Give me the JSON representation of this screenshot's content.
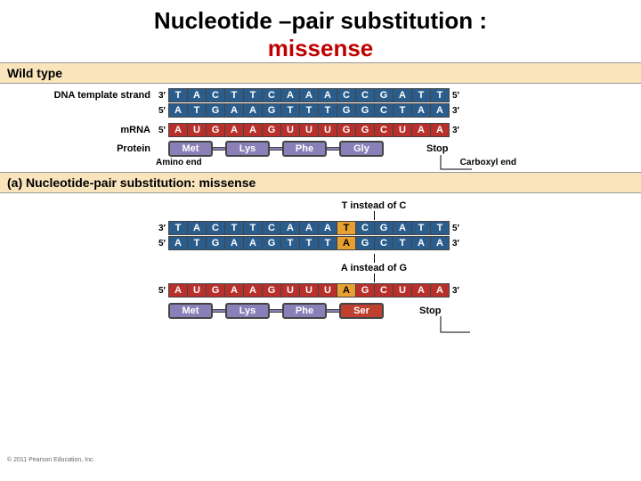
{
  "title": {
    "main": "Nucleotide –pair substitution :",
    "sub": "missense"
  },
  "colors": {
    "dna_blue": "#2b5d8c",
    "mrna_red": "#b8302c",
    "protein_purple": "#8b7fb8",
    "header_bg": "#f9e4bc",
    "mutation_orange": "#e8a030",
    "ser_red": "#c04030"
  },
  "headers": {
    "wild": "Wild type",
    "missense": "(a)  Nucleotide-pair substitution: missense"
  },
  "labels": {
    "dna_template": "DNA template strand",
    "mrna": "mRNA",
    "protein": "Protein",
    "amino_end": "Amino end",
    "carboxyl_end": "Carboxyl end",
    "stop": "Stop",
    "note_t": "T instead of C",
    "note_a": "A instead of G"
  },
  "wild": {
    "dna_top": [
      "T",
      "A",
      "C",
      "T",
      "T",
      "C",
      "A",
      "A",
      "A",
      "C",
      "C",
      "G",
      "A",
      "T",
      "T"
    ],
    "dna_bot": [
      "A",
      "T",
      "G",
      "A",
      "A",
      "G",
      "T",
      "T",
      "T",
      "G",
      "G",
      "C",
      "T",
      "A",
      "A"
    ],
    "mrna": [
      "A",
      "U",
      "G",
      "A",
      "A",
      "G",
      "U",
      "U",
      "U",
      "G",
      "G",
      "C",
      "U",
      "A",
      "A"
    ],
    "protein": [
      "Met",
      "Lys",
      "Phe",
      "Gly"
    ]
  },
  "missense": {
    "dna_top": [
      "T",
      "A",
      "C",
      "T",
      "T",
      "C",
      "A",
      "A",
      "A",
      "T",
      "C",
      "G",
      "A",
      "T",
      "T"
    ],
    "dna_bot": [
      "A",
      "T",
      "G",
      "A",
      "A",
      "G",
      "T",
      "T",
      "T",
      "A",
      "G",
      "C",
      "T",
      "A",
      "A"
    ],
    "mrna": [
      "A",
      "U",
      "G",
      "A",
      "A",
      "G",
      "U",
      "U",
      "U",
      "A",
      "G",
      "C",
      "U",
      "A",
      "A"
    ],
    "protein": [
      "Met",
      "Lys",
      "Phe",
      "Ser"
    ],
    "mut_index": 9
  },
  "copyright": "© 2011 Pearson Education, Inc."
}
